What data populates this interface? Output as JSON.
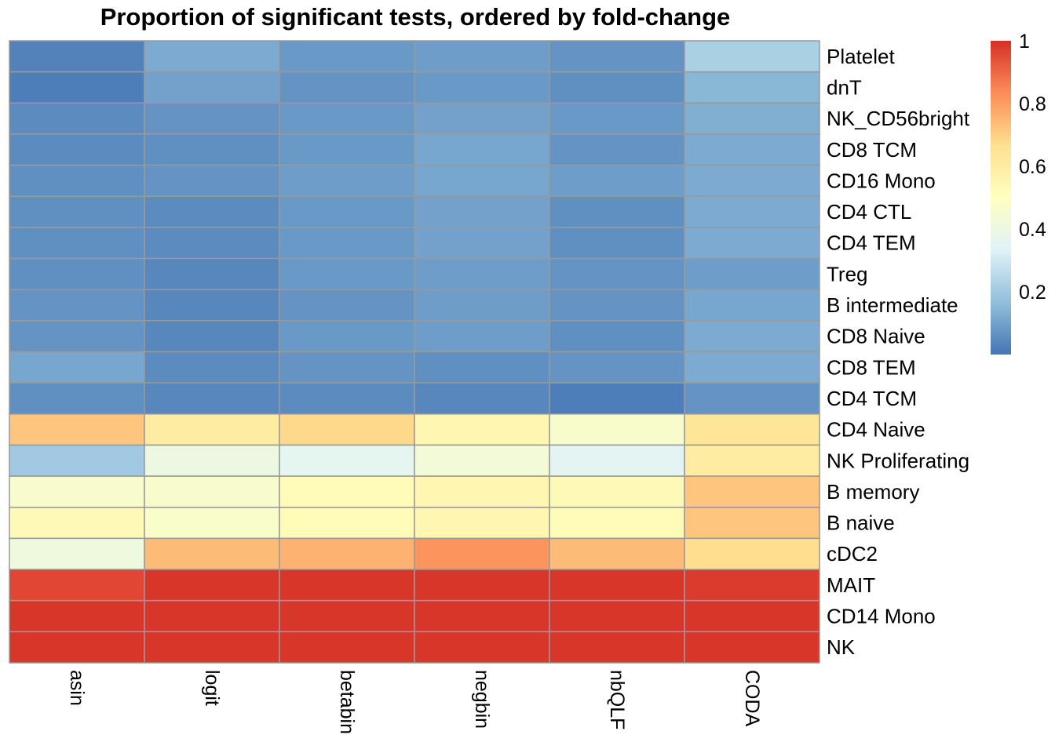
{
  "chart_data": {
    "type": "heatmap",
    "title": "Proportion of significant tests, ordered by fold-change",
    "columns": [
      "asin",
      "logit",
      "betabin",
      "negbin",
      "nbQLF",
      "CODA"
    ],
    "rows": [
      "Platelet",
      "dnT",
      "NK_CD56bright",
      "CD8 TCM",
      "CD16 Mono",
      "CD4 CTL",
      "CD4 TEM",
      "Treg",
      "B intermediate",
      "CD8 Naive",
      "CD8 TEM",
      "CD4 TCM",
      "CD4 Naive",
      "NK Proliferating",
      "B memory",
      "B naive",
      "cDC2",
      "MAIT",
      "CD14 Mono",
      "NK"
    ],
    "values": [
      [
        0.03,
        0.12,
        0.08,
        0.09,
        0.07,
        0.22
      ],
      [
        0.02,
        0.1,
        0.07,
        0.08,
        0.06,
        0.15
      ],
      [
        0.05,
        0.07,
        0.08,
        0.1,
        0.08,
        0.13
      ],
      [
        0.05,
        0.06,
        0.08,
        0.11,
        0.07,
        0.12
      ],
      [
        0.06,
        0.07,
        0.09,
        0.11,
        0.09,
        0.12
      ],
      [
        0.06,
        0.05,
        0.08,
        0.1,
        0.06,
        0.12
      ],
      [
        0.06,
        0.05,
        0.08,
        0.1,
        0.06,
        0.12
      ],
      [
        0.06,
        0.04,
        0.08,
        0.09,
        0.07,
        0.09
      ],
      [
        0.07,
        0.04,
        0.07,
        0.09,
        0.07,
        0.11
      ],
      [
        0.07,
        0.04,
        0.08,
        0.09,
        0.06,
        0.12
      ],
      [
        0.11,
        0.05,
        0.07,
        0.06,
        0.07,
        0.12
      ],
      [
        0.06,
        0.04,
        0.05,
        0.04,
        0.02,
        0.07
      ],
      [
        0.72,
        0.6,
        0.68,
        0.55,
        0.46,
        0.64
      ],
      [
        0.2,
        0.4,
        0.36,
        0.43,
        0.35,
        0.6
      ],
      [
        0.46,
        0.46,
        0.52,
        0.55,
        0.53,
        0.72
      ],
      [
        0.53,
        0.47,
        0.52,
        0.55,
        0.52,
        0.72
      ],
      [
        0.41,
        0.74,
        0.76,
        0.82,
        0.74,
        0.67
      ],
      [
        0.96,
        0.99,
        0.99,
        0.99,
        0.99,
        0.98
      ],
      [
        0.99,
        0.99,
        0.99,
        0.99,
        0.99,
        0.99
      ],
      [
        0.99,
        0.99,
        0.99,
        0.99,
        0.99,
        0.99
      ]
    ],
    "legend": {
      "range": [
        0.0,
        1.0
      ],
      "ticks": [
        {
          "label": "1",
          "value": 1.0
        },
        {
          "label": "0.8",
          "value": 0.8
        },
        {
          "label": "0.6",
          "value": 0.6
        },
        {
          "label": "0.4",
          "value": 0.4
        },
        {
          "label": "0.2",
          "value": 0.2
        }
      ],
      "colors": [
        "#4575B4",
        "#91BFDB",
        "#E0F3F8",
        "#FFFFBF",
        "#FEE090",
        "#FC8D59",
        "#D73027"
      ],
      "placement": "right"
    },
    "border_color": "#999999"
  }
}
